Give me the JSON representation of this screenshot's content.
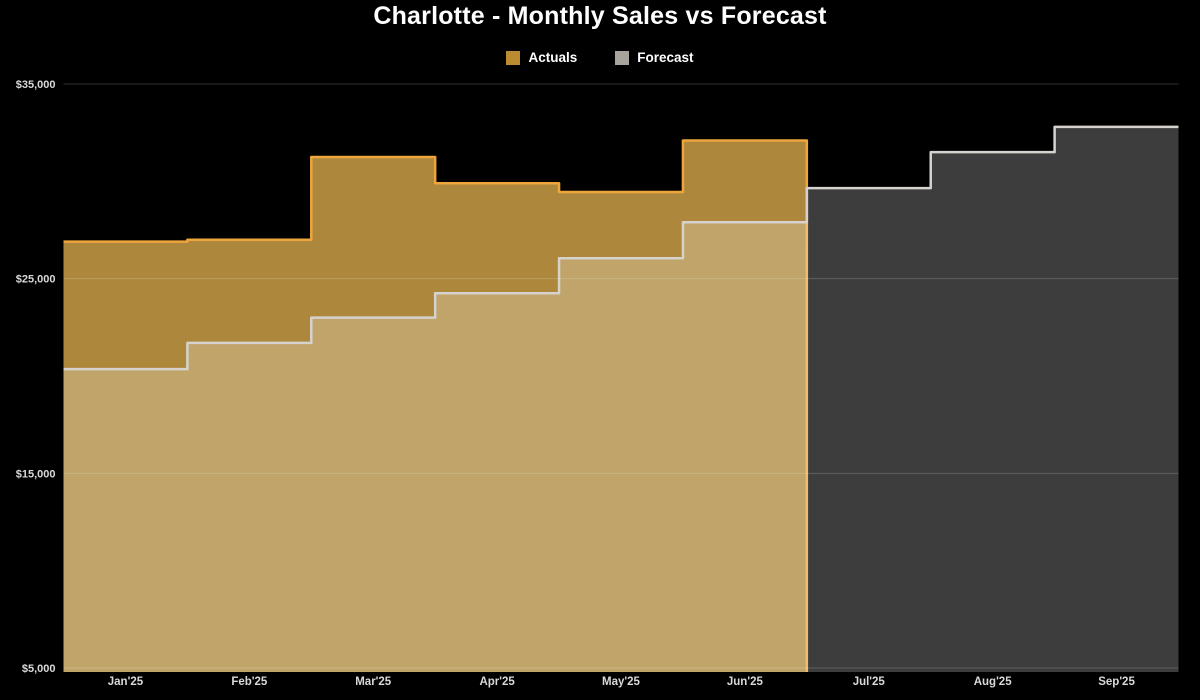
{
  "chart_data": {
    "type": "area",
    "step": true,
    "title": "Charlotte - Monthly Sales vs Forecast",
    "categories": [
      "Jan'25",
      "Feb'25",
      "Mar'25",
      "Apr'25",
      "May'25",
      "Jun'25",
      "Jul'25",
      "Aug'25",
      "Sep'25"
    ],
    "series": [
      {
        "name": "Actuals",
        "values": [
          26900,
          27000,
          31250,
          29900,
          29450,
          32100
        ],
        "fill": "#ad883c",
        "stroke": "#eea63c",
        "legend_swatch": "#bc8a30"
      },
      {
        "name": "Forecast",
        "values": [
          20350,
          21700,
          23000,
          24250,
          26050,
          27900,
          29650,
          31500,
          32800
        ],
        "fill": "rgba(255,255,255,0.24)",
        "stroke": "#d6d2cd",
        "legend_swatch": "#a8a39d"
      }
    ],
    "y_axis": {
      "ticks": [
        5000,
        15000,
        25000,
        35000
      ],
      "tick_labels": [
        "$5,000",
        "$15,000",
        "$25,000",
        "$35,000"
      ]
    },
    "ylim": [
      4800,
      35800
    ],
    "grid": true,
    "legend_position": "top",
    "colors": {
      "background": "#000000",
      "title_text": "#ffffff",
      "axis_label": "#d9d9d9",
      "gridline": "rgba(255,255,255,0.18)"
    }
  }
}
